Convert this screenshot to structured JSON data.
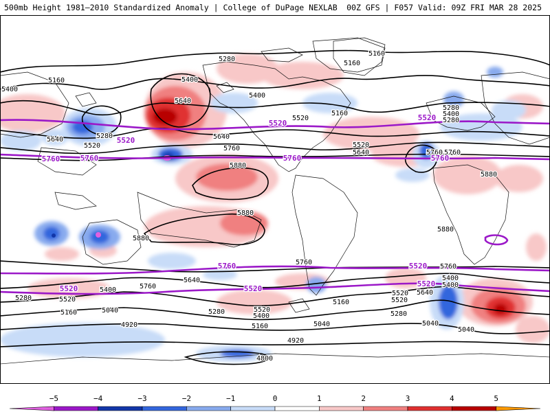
{
  "header": {
    "title_left": "500mb Height 1981–2010 Standardized Anomaly | College of DuPage NEXLAB",
    "title_right": "00Z GFS | F057 Valid: 09Z FRI MAR 28 2025"
  },
  "contour_labels_black": [
    "5280",
    "5160",
    "5160",
    "5400",
    "5160",
    "5400",
    "5640",
    "5400",
    "5520",
    "5160",
    "5280",
    "5640",
    "5520",
    "5280",
    "5400",
    "5280",
    "5520",
    "5640",
    "5760",
    "5640",
    "5760",
    "5760",
    "5880",
    "5880",
    "5880",
    "5880",
    "5880",
    "5760",
    "5760",
    "5760",
    "5640",
    "5400",
    "5280",
    "5520",
    "5160",
    "5400",
    "5520",
    "5040",
    "5280",
    "5160",
    "4920",
    "5040",
    "5400",
    "5520",
    "5640",
    "5520",
    "5280",
    "5160",
    "5040",
    "5040",
    "5400",
    "4920",
    "4800"
  ],
  "contour_labels_purple": [
    "5520",
    "5520",
    "5520",
    "5760",
    "5760",
    "5760",
    "5760",
    "5520",
    "5520",
    "5520",
    "5760",
    "5520"
  ],
  "colorbar": {
    "ticks": [
      "−5",
      "−4",
      "−3",
      "−2",
      "−1",
      "0",
      "1",
      "2",
      "3",
      "4",
      "5"
    ],
    "colors": [
      "#e060e0",
      "#9b18c8",
      "#1236a8",
      "#3366dd",
      "#88aaee",
      "#c8dcf8",
      "#ffffff",
      "#f8c8c8",
      "#f08080",
      "#e03030",
      "#b80000",
      "#ff9a00"
    ]
  }
}
